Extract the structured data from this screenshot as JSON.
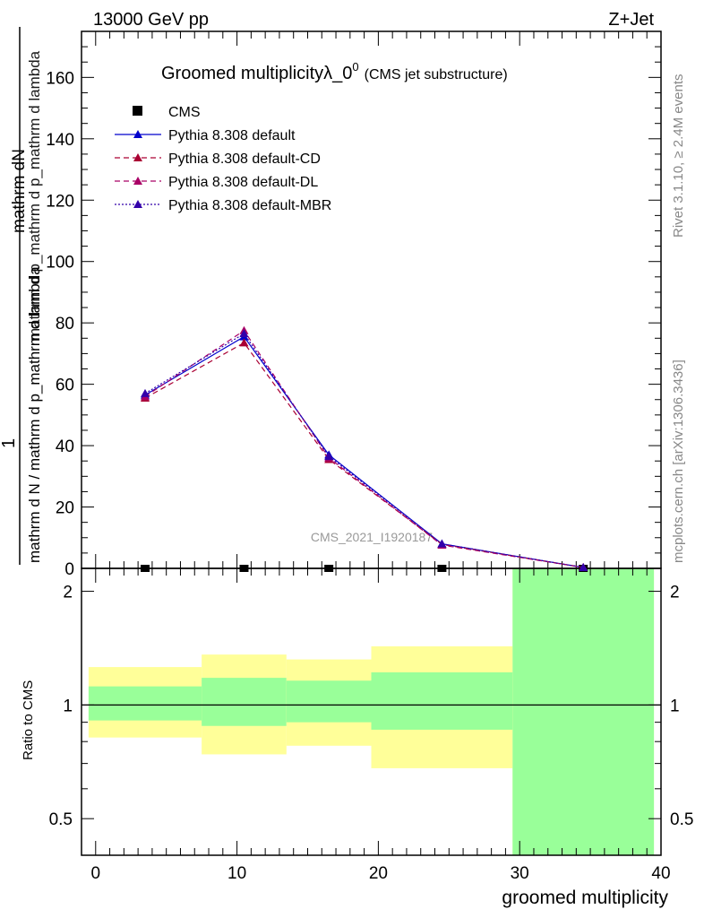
{
  "header": {
    "left": "13000 GeV pp",
    "right": "Z+Jet"
  },
  "title": {
    "main": "Groomed multiplicityλ_0",
    "superscript": "0",
    "suffix": "(CMS jet substructure)"
  },
  "side_labels": {
    "rivet": "Rivet 3.1.10, ≥ 2.4M events",
    "mcplots": "mcplots.cern.ch [arXiv:1306.3436]"
  },
  "watermark": "CMS_2021_I1920187",
  "y_axis_label": {
    "numerator_one": "1",
    "numerator": "mathrm dN",
    "denominator_a": "mathrm d N / mathrm d p_mathrm d lambda",
    "denominator_b": "mathrm d p_mathrm d p_mathrm d lambda"
  },
  "ratio_ylabel": "Ratio to CMS",
  "x_label": "groomed multiplicity",
  "colors": {
    "cms": "#000000",
    "default": "#0000cc",
    "cd": "#aa0033",
    "dl": "#aa0066",
    "mbr": "#3300aa",
    "band_inner": "#99ff99",
    "band_outer": "#ffff99"
  },
  "legend": [
    {
      "label": "CMS",
      "key": "cms"
    },
    {
      "label": "Pythia 8.308 default",
      "key": "default"
    },
    {
      "label": "Pythia 8.308 default-CD",
      "key": "cd"
    },
    {
      "label": "Pythia 8.308 default-DL",
      "key": "dl"
    },
    {
      "label": "Pythia 8.308 default-MBR",
      "key": "mbr"
    }
  ],
  "chart_data": [
    {
      "type": "line",
      "title": "Groomed multiplicityλ_0",
      "xlabel": "groomed multiplicity",
      "ylabel": "1 / mathrm d N / mathrm d p_mathrm d lambda",
      "xlim": [
        -1,
        40
      ],
      "ylim": [
        0,
        175
      ],
      "yticks": [
        0,
        20,
        40,
        60,
        80,
        100,
        120,
        140,
        160
      ],
      "xticks": [
        0,
        10,
        20,
        30,
        40
      ],
      "legend_position": "top-left",
      "series": [
        {
          "name": "CMS",
          "key": "cms",
          "x": [
            3.5,
            10.5,
            16.5,
            24.5,
            34.5
          ],
          "y": [
            0,
            0,
            0,
            0,
            0
          ]
        },
        {
          "name": "Pythia 8.308 default",
          "key": "default",
          "x": [
            3.5,
            10.5,
            16.5,
            24.5,
            34.5
          ],
          "y": [
            56.5,
            75.5,
            37.0,
            8.0,
            0.3
          ]
        },
        {
          "name": "Pythia 8.308 default-CD",
          "key": "cd",
          "x": [
            3.5,
            10.5,
            16.5,
            24.5,
            34.5
          ],
          "y": [
            55.5,
            73.5,
            35.5,
            7.8,
            0.3
          ]
        },
        {
          "name": "Pythia 8.308 default-DL",
          "key": "dl",
          "x": [
            3.5,
            10.5,
            16.5,
            24.5,
            34.5
          ],
          "y": [
            56.0,
            77.5,
            36.0,
            7.6,
            0.3
          ]
        },
        {
          "name": "Pythia 8.308 default-MBR",
          "key": "mbr",
          "x": [
            3.5,
            10.5,
            16.5,
            24.5,
            34.5
          ],
          "y": [
            57.0,
            76.5,
            36.5,
            8.0,
            0.3
          ]
        }
      ]
    },
    {
      "type": "area",
      "ylabel": "Ratio to CMS",
      "xlabel": "groomed multiplicity",
      "yscale": "log",
      "ylim": [
        0.4,
        2.3
      ],
      "yticks": [
        0.5,
        1,
        2
      ],
      "reference_line": 1,
      "bins": [
        {
          "x_low": -0.5,
          "x_high": 7.5,
          "inner": [
            0.91,
            1.12
          ],
          "outer": [
            0.82,
            1.26
          ]
        },
        {
          "x_low": 7.5,
          "x_high": 13.5,
          "inner": [
            0.88,
            1.18
          ],
          "outer": [
            0.74,
            1.36
          ]
        },
        {
          "x_low": 13.5,
          "x_high": 19.5,
          "inner": [
            0.9,
            1.16
          ],
          "outer": [
            0.78,
            1.32
          ]
        },
        {
          "x_low": 19.5,
          "x_high": 29.5,
          "inner": [
            0.86,
            1.22
          ],
          "outer": [
            0.68,
            1.43
          ]
        },
        {
          "x_low": 29.5,
          "x_high": 39.5,
          "inner": [
            0.4,
            2.3
          ],
          "outer": [
            0.4,
            2.3
          ]
        }
      ]
    }
  ]
}
